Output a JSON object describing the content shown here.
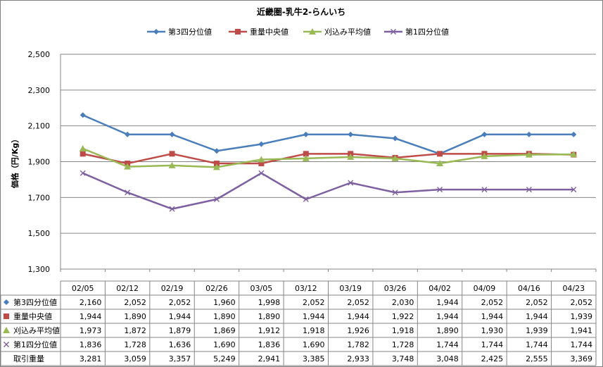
{
  "chart_data": {
    "type": "line",
    "title": "近畿圏-乳牛2-らんいち",
    "ylabel": "価格（円/Kg）",
    "xlabel": "",
    "ylim": [
      1300,
      2500
    ],
    "yticks": [
      "1,300",
      "1,500",
      "1,700",
      "1,900",
      "2,100",
      "2,300",
      "2,500"
    ],
    "ytick_values": [
      1300,
      1500,
      1700,
      1900,
      2100,
      2300,
      2500
    ],
    "grid": "horizontal",
    "legend_position": "top",
    "categories": [
      "02/05",
      "02/12",
      "02/19",
      "02/26",
      "03/05",
      "03/12",
      "03/19",
      "03/26",
      "04/02",
      "04/09",
      "04/16",
      "04/23"
    ],
    "series": [
      {
        "name": "第3四分位値",
        "color": "#4a7ebb",
        "marker": "diamond",
        "values": [
          2160,
          2052,
          2052,
          1960,
          1998,
          2052,
          2052,
          2030,
          1944,
          2052,
          2052,
          2052
        ],
        "labels": [
          "2,160",
          "2,052",
          "2,052",
          "1,960",
          "1,998",
          "2,052",
          "2,052",
          "2,030",
          "1,944",
          "2,052",
          "2,052",
          "2,052"
        ]
      },
      {
        "name": "重量中央値",
        "color": "#be4b48",
        "marker": "square",
        "values": [
          1944,
          1890,
          1944,
          1890,
          1890,
          1944,
          1944,
          1922,
          1944,
          1944,
          1944,
          1939
        ],
        "labels": [
          "1,944",
          "1,890",
          "1,944",
          "1,890",
          "1,890",
          "1,944",
          "1,944",
          "1,922",
          "1,944",
          "1,944",
          "1,944",
          "1,939"
        ]
      },
      {
        "name": "刈込み平均値",
        "color": "#98b954",
        "marker": "triangle",
        "values": [
          1973,
          1872,
          1879,
          1869,
          1912,
          1918,
          1926,
          1918,
          1890,
          1930,
          1939,
          1941
        ],
        "labels": [
          "1,973",
          "1,872",
          "1,879",
          "1,869",
          "1,912",
          "1,918",
          "1,926",
          "1,918",
          "1,890",
          "1,930",
          "1,939",
          "1,941"
        ]
      },
      {
        "name": "第1四分位値",
        "color": "#7d60a0",
        "marker": "x",
        "values": [
          1836,
          1728,
          1636,
          1690,
          1836,
          1690,
          1782,
          1728,
          1744,
          1744,
          1744,
          1744
        ],
        "labels": [
          "1,836",
          "1,728",
          "1,636",
          "1,690",
          "1,836",
          "1,690",
          "1,782",
          "1,728",
          "1,744",
          "1,744",
          "1,744",
          "1,744"
        ]
      }
    ],
    "table_extra_row": {
      "name": "取引重量",
      "labels": [
        "3,281",
        "3,059",
        "3,357",
        "5,249",
        "2,941",
        "3,385",
        "2,933",
        "3,748",
        "3,048",
        "2,425",
        "2,555",
        "3,369"
      ]
    }
  }
}
